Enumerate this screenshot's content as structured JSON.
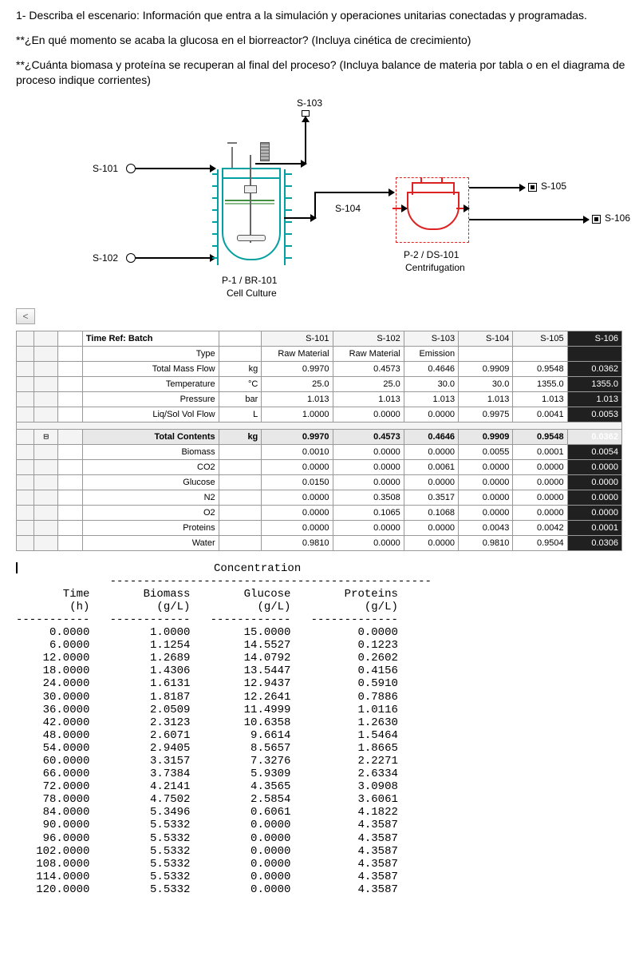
{
  "questions": {
    "q1": "1- Describa el escenario: Información que entra a la simulación y operaciones unitarias conectadas y programadas.",
    "q2": "**¿En qué momento se acaba la glucosa en el biorreactor? (Incluya cinética de crecimiento)",
    "q3": "**¿Cuánta biomasa y proteína se recuperan al final del proceso? (Incluya balance de materia por tabla o en el diagrama de proceso indique corrientes)"
  },
  "diagram": {
    "streams": {
      "s101": "S-101",
      "s102": "S-102",
      "s103": "S-103",
      "s104": "S-104",
      "s105": "S-105",
      "s106": "S-106"
    },
    "units": {
      "reactor": {
        "tag": "P-1 / BR-101",
        "name": "Cell Culture"
      },
      "centrifuge": {
        "tag": "P-2 / DS-101",
        "name": "Centrifugation"
      }
    },
    "colors": {
      "vessel": "#02a0a0",
      "centrifuge": "#d22",
      "liquid": "#409040"
    }
  },
  "stream_table": {
    "title": "Time Ref: Batch",
    "headers": [
      "S-101",
      "S-102",
      "S-103",
      "S-104",
      "S-105",
      "S-106"
    ],
    "rows_top": [
      {
        "label": "Type",
        "unit": "",
        "cells": [
          "Raw Material",
          "Raw Material",
          "Emission",
          "",
          "",
          ""
        ]
      },
      {
        "label": "Total Mass Flow",
        "unit": "kg",
        "cells": [
          "0.9970",
          "0.4573",
          "0.4646",
          "0.9909",
          "0.9548",
          "0.0362"
        ]
      },
      {
        "label": "Temperature",
        "unit": "°C",
        "cells": [
          "25.0",
          "25.0",
          "30.0",
          "30.0",
          "1355.0",
          "1355.0"
        ]
      },
      {
        "label": "Pressure",
        "unit": "bar",
        "cells": [
          "1.013",
          "1.013",
          "1.013",
          "1.013",
          "1.013",
          "1.013"
        ]
      },
      {
        "label": "Liq/Sol Vol Flow",
        "unit": "L",
        "cells": [
          "1.0000",
          "0.0000",
          "0.0000",
          "0.9975",
          "0.0041",
          "0.0053"
        ]
      }
    ],
    "section_label": "Total Contents",
    "section_unit": "kg",
    "section_cells": [
      "0.9970",
      "0.4573",
      "0.4646",
      "0.9909",
      "0.9548",
      "0.0362"
    ],
    "rows_bottom": [
      {
        "label": "Biomass",
        "cells": [
          "0.0010",
          "0.0000",
          "0.0000",
          "0.0055",
          "0.0001",
          "0.0054"
        ]
      },
      {
        "label": "CO2",
        "cells": [
          "0.0000",
          "0.0000",
          "0.0061",
          "0.0000",
          "0.0000",
          "0.0000"
        ]
      },
      {
        "label": "Glucose",
        "cells": [
          "0.0150",
          "0.0000",
          "0.0000",
          "0.0000",
          "0.0000",
          "0.0000"
        ]
      },
      {
        "label": "N2",
        "cells": [
          "0.0000",
          "0.3508",
          "0.3517",
          "0.0000",
          "0.0000",
          "0.0000"
        ]
      },
      {
        "label": "O2",
        "cells": [
          "0.0000",
          "0.1065",
          "0.1068",
          "0.0000",
          "0.0000",
          "0.0000"
        ]
      },
      {
        "label": "Proteins",
        "cells": [
          "0.0000",
          "0.0000",
          "0.0000",
          "0.0043",
          "0.0042",
          "0.0001"
        ]
      },
      {
        "label": "Water",
        "cells": [
          "0.9810",
          "0.0000",
          "0.0000",
          "0.9810",
          "0.9504",
          "0.0306"
        ]
      }
    ],
    "dark_col_index": 5
  },
  "conc_table": {
    "title": "Concentration",
    "headers": {
      "time": "Time",
      "time_u": "(h)",
      "bio": "Biomass",
      "bio_u": "(g/L)",
      "glu": "Glucose",
      "glu_u": "(g/L)",
      "pro": "Proteins",
      "pro_u": "(g/L)"
    },
    "rows": [
      [
        "0.0000",
        "1.0000",
        "15.0000",
        "0.0000"
      ],
      [
        "6.0000",
        "1.1254",
        "14.5527",
        "0.1223"
      ],
      [
        "12.0000",
        "1.2689",
        "14.0792",
        "0.2602"
      ],
      [
        "18.0000",
        "1.4306",
        "13.5447",
        "0.4156"
      ],
      [
        "24.0000",
        "1.6131",
        "12.9437",
        "0.5910"
      ],
      [
        "30.0000",
        "1.8187",
        "12.2641",
        "0.7886"
      ],
      [
        "36.0000",
        "2.0509",
        "11.4999",
        "1.0116"
      ],
      [
        "42.0000",
        "2.3123",
        "10.6358",
        "1.2630"
      ],
      [
        "48.0000",
        "2.6071",
        "9.6614",
        "1.5464"
      ],
      [
        "54.0000",
        "2.9405",
        "8.5657",
        "1.8665"
      ],
      [
        "60.0000",
        "3.3157",
        "7.3276",
        "2.2271"
      ],
      [
        "66.0000",
        "3.7384",
        "5.9309",
        "2.6334"
      ],
      [
        "72.0000",
        "4.2141",
        "4.3565",
        "3.0908"
      ],
      [
        "78.0000",
        "4.7502",
        "2.5854",
        "3.6061"
      ],
      [
        "84.0000",
        "5.3496",
        "0.6061",
        "4.1822"
      ],
      [
        "90.0000",
        "5.5332",
        "0.0000",
        "4.3587"
      ],
      [
        "96.0000",
        "5.5332",
        "0.0000",
        "4.3587"
      ],
      [
        "102.0000",
        "5.5332",
        "0.0000",
        "4.3587"
      ],
      [
        "108.0000",
        "5.5332",
        "0.0000",
        "4.3587"
      ],
      [
        "114.0000",
        "5.5332",
        "0.0000",
        "4.3587"
      ],
      [
        "120.0000",
        "5.5332",
        "0.0000",
        "4.3587"
      ]
    ]
  }
}
